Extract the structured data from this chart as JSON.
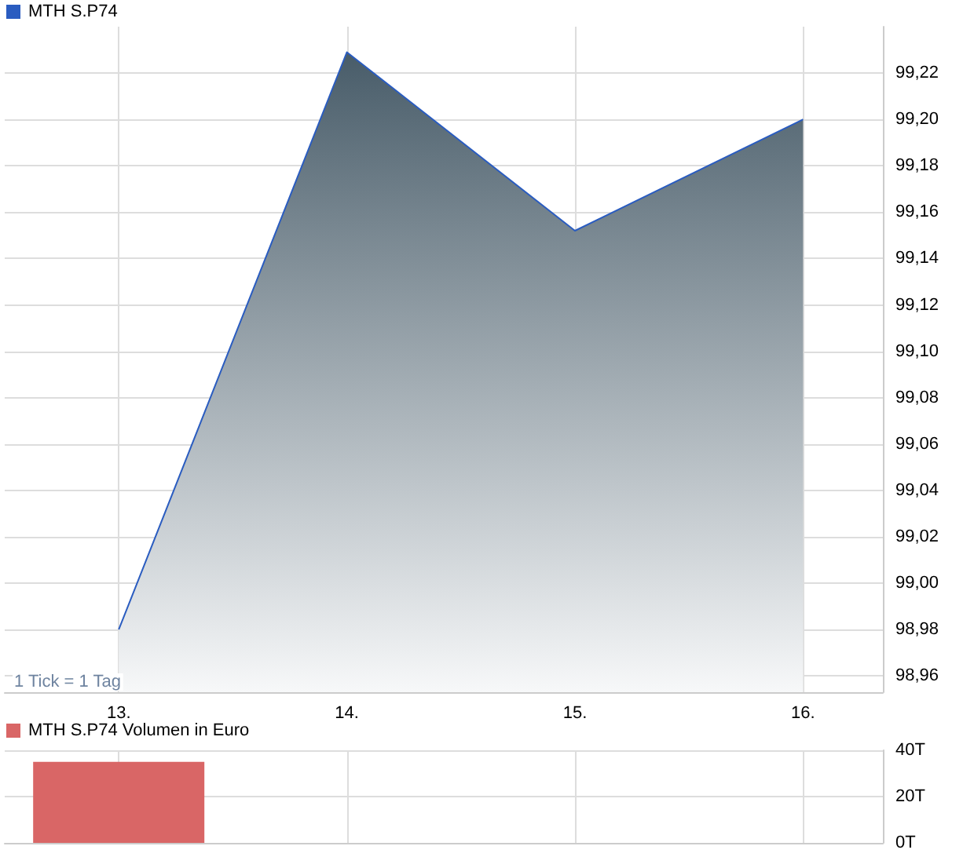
{
  "chart_data": [
    {
      "type": "area",
      "x": [
        13,
        14,
        15,
        16
      ],
      "series": [
        {
          "name": "MTH S.P74",
          "color": "#2a5cc0",
          "values": [
            98.98,
            99.229,
            99.152,
            99.2
          ]
        }
      ],
      "xlim": [
        12.5,
        16.35
      ],
      "xticks": [
        {
          "value": 13,
          "label": "13."
        },
        {
          "value": 14,
          "label": "14."
        },
        {
          "value": 15,
          "label": "15."
        },
        {
          "value": 16,
          "label": "16."
        }
      ],
      "ylim": [
        98.953,
        99.24
      ],
      "yticks": [
        {
          "value": 98.96,
          "label": "98,96"
        },
        {
          "value": 98.98,
          "label": "98,98"
        },
        {
          "value": 99.0,
          "label": "99,00"
        },
        {
          "value": 99.02,
          "label": "99,02"
        },
        {
          "value": 99.04,
          "label": "99,04"
        },
        {
          "value": 99.06,
          "label": "99,06"
        },
        {
          "value": 99.08,
          "label": "99,08"
        },
        {
          "value": 99.1,
          "label": "99,10"
        },
        {
          "value": 99.12,
          "label": "99,12"
        },
        {
          "value": 99.14,
          "label": "99,14"
        },
        {
          "value": 99.16,
          "label": "99,16"
        },
        {
          "value": 99.18,
          "label": "99,18"
        },
        {
          "value": 99.2,
          "label": "99,20"
        },
        {
          "value": 99.22,
          "label": "99,22"
        }
      ],
      "grid": true,
      "legend": "top left",
      "marker": "none",
      "annotations": [
        "1 Tick = 1 Tag"
      ]
    },
    {
      "type": "bar",
      "x": [
        13
      ],
      "series": [
        {
          "name": "MTH S.P74 Volumen in Euro",
          "color": "#d96666",
          "values": [
            35
          ]
        }
      ],
      "xlim": [
        12.5,
        16.35
      ],
      "xticks": [
        13,
        14,
        15,
        16
      ],
      "ylim": [
        0,
        40
      ],
      "yticks": [
        {
          "value": 0,
          "label": "0T"
        },
        {
          "value": 20,
          "label": "20T"
        },
        {
          "value": 40,
          "label": "40T"
        }
      ],
      "grid": true,
      "legend": "top left",
      "tick_labels": "y"
    }
  ]
}
